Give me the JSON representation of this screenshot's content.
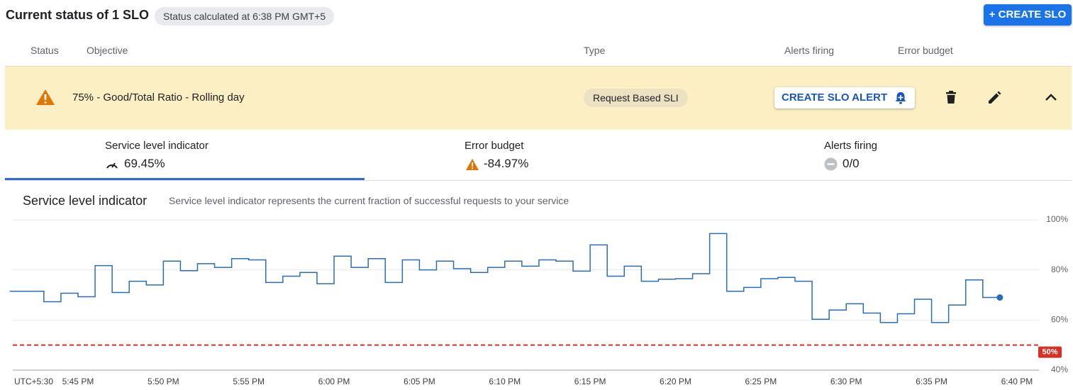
{
  "header": {
    "title": "Current status of 1 SLO",
    "status_chip": "Status calculated at 6:38 PM GMT+5",
    "create_button": "+ CREATE SLO"
  },
  "table": {
    "columns": [
      "Status",
      "Objective",
      "Type",
      "Alerts firing",
      "Error budget"
    ],
    "row": {
      "objective": "75% - Good/Total Ratio - Rolling day",
      "type": "Request Based SLI",
      "alert_button": "CREATE SLO ALERT"
    }
  },
  "tabs": [
    {
      "label": "Service level indicator",
      "value": "69.45%"
    },
    {
      "label": "Error budget",
      "value": "-84.97%"
    },
    {
      "label": "Alerts firing",
      "value": "0/0"
    }
  ],
  "chart_data": {
    "type": "step-line",
    "title": "Service level indicator",
    "subtitle": "Service level indicator represents the current fraction of successful requests to your service",
    "x_label": "UTC+5:30",
    "x": [
      "5:41 PM",
      "5:42 PM",
      "5:43 PM",
      "5:44 PM",
      "5:45 PM",
      "5:46 PM",
      "5:47 PM",
      "5:48 PM",
      "5:49 PM",
      "5:50 PM",
      "5:51 PM",
      "5:52 PM",
      "5:53 PM",
      "5:54 PM",
      "5:55 PM",
      "5:56 PM",
      "5:57 PM",
      "5:58 PM",
      "5:59 PM",
      "6:00 PM",
      "6:01 PM",
      "6:02 PM",
      "6:03 PM",
      "6:04 PM",
      "6:05 PM",
      "6:06 PM",
      "6:07 PM",
      "6:08 PM",
      "6:09 PM",
      "6:10 PM",
      "6:11 PM",
      "6:12 PM",
      "6:13 PM",
      "6:14 PM",
      "6:15 PM",
      "6:16 PM",
      "6:17 PM",
      "6:18 PM",
      "6:19 PM",
      "6:20 PM",
      "6:21 PM",
      "6:22 PM",
      "6:23 PM",
      "6:24 PM",
      "6:25 PM",
      "6:26 PM",
      "6:27 PM",
      "6:28 PM",
      "6:29 PM",
      "6:30 PM",
      "6:31 PM",
      "6:32 PM",
      "6:33 PM",
      "6:34 PM",
      "6:35 PM",
      "6:36 PM",
      "6:37 PM",
      "6:38 PM",
      "6:39 PM"
    ],
    "series": [
      {
        "color": "#2b6cb8",
        "values": [
          71.5,
          71.5,
          67.3,
          70.7,
          69.3,
          81.7,
          71,
          75.5,
          74,
          83.5,
          79.7,
          82.5,
          81,
          84.5,
          84,
          75,
          77.5,
          79,
          74.5,
          85.5,
          81,
          84.5,
          75,
          84,
          80,
          83.5,
          80.5,
          79,
          81,
          83.5,
          81.5,
          84,
          83.5,
          79.5,
          90,
          77.5,
          81.5,
          75.5,
          76.3,
          76.5,
          78.5,
          94.5,
          71.5,
          73,
          76.5,
          77,
          75.5,
          60.3,
          64,
          66.5,
          62.8,
          59,
          62.5,
          68.3,
          59,
          66,
          76,
          69,
          69
        ]
      }
    ],
    "xlim": [
      "5:41 PM",
      "6:41 PM"
    ],
    "xticks": [
      "5:45 PM",
      "5:50 PM",
      "5:55 PM",
      "6:00 PM",
      "6:05 PM",
      "6:10 PM",
      "6:15 PM",
      "6:20 PM",
      "6:25 PM",
      "6:30 PM",
      "6:35 PM",
      "6:40 PM"
    ],
    "ylim": [
      40,
      100
    ],
    "yticks": [
      {
        "value": 40,
        "label": "40%"
      },
      {
        "value": 60,
        "label": "60%"
      },
      {
        "value": 80,
        "label": "80%"
      },
      {
        "value": 100,
        "label": "100%"
      }
    ],
    "grid": true,
    "threshold": {
      "value": 50,
      "label": "50%",
      "color": "#d93025"
    }
  }
}
